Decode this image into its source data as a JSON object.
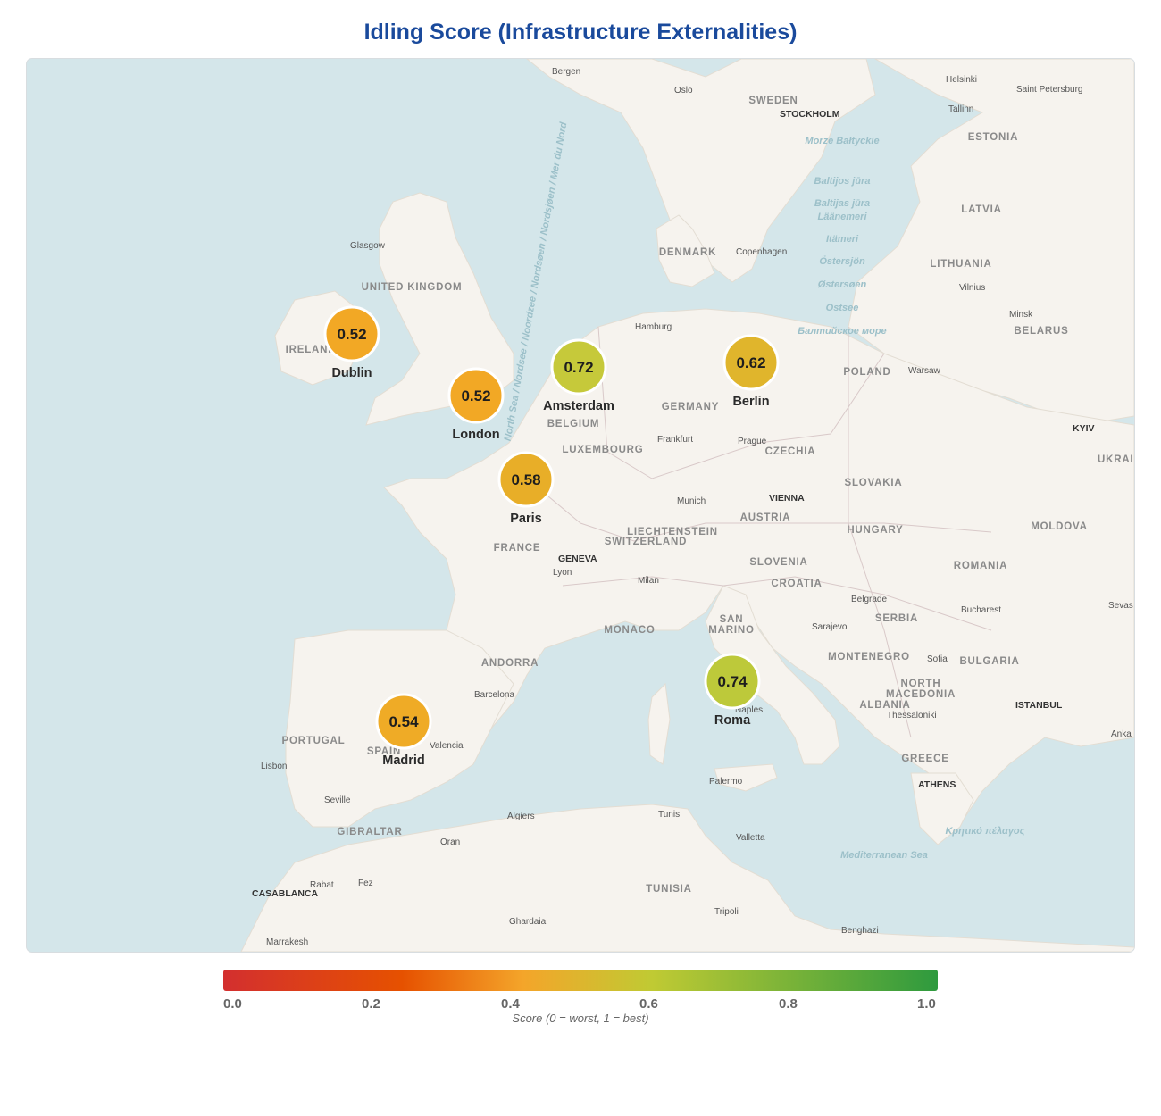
{
  "title": "Idling Score (Infrastructure Externalities)",
  "markers": [
    {
      "city": "Dublin",
      "score": "0.52",
      "color": "#f2a825"
    },
    {
      "city": "London",
      "score": "0.52",
      "color": "#f2a825"
    },
    {
      "city": "Amsterdam",
      "score": "0.72",
      "color": "#c6c93a"
    },
    {
      "city": "Berlin",
      "score": "0.62",
      "color": "#e0b52c"
    },
    {
      "city": "Paris",
      "score": "0.58",
      "color": "#e8ae28"
    },
    {
      "city": "Madrid",
      "score": "0.54",
      "color": "#efab26"
    },
    {
      "city": "Roma",
      "score": "0.74",
      "color": "#bdc93a"
    }
  ],
  "countries": [
    "SWEDEN",
    "ESTONIA",
    "LATVIA",
    "LITHUANIA",
    "DENMARK",
    "UNITED KINGDOM",
    "IRELAND",
    "BELARUS",
    "POLAND",
    "GERMANY",
    "BELGIUM",
    "LUXEMBOURG",
    "CZECHIA",
    "SLOVAKIA",
    "UKRAINE",
    "AUSTRIA",
    "HUNGARY",
    "MOLDOVA",
    "LIECHTENSTEIN",
    "SWITZERLAND",
    "FRANCE",
    "SLOVENIA",
    "CROATIA",
    "ROMANIA",
    "SERBIA",
    "SAN",
    "MARINO",
    "MONACO",
    "ANDORRA",
    "MONTENEGRO",
    "BULGARIA",
    "NORTH",
    "MACEDONIA",
    "ALBANIA",
    "PORTUGAL",
    "SPAIN",
    "GREECE",
    "GIBRALTAR",
    "TUNISIA"
  ],
  "cities": [
    "Bergen",
    "Oslo",
    "Helsinki",
    "Saint Petersburg",
    "STOCKHOLM",
    "Tallinn",
    "Glasgow",
    "Copenhagen",
    "Vilnius",
    "Minsk",
    "Hamburg",
    "Warsaw",
    "KYIV",
    "Frankfurt",
    "Prague",
    "Munich",
    "VIENNA",
    "GENEVA",
    "Lyon",
    "Milan",
    "Belgrade",
    "Bucharest",
    "Sarajevo",
    "Sofia",
    "Barcelona",
    "Naples",
    "ISTANBUL",
    "Thessaloniki",
    "Valencia",
    "Lisbon",
    "ATHENS",
    "Seville",
    "Palermo",
    "Algiers",
    "Tunis",
    "Oran",
    "Valletta",
    "Rabat",
    "Fez",
    "CASABLANCA",
    "Tripoli",
    "Ghardaia",
    "Marrakesh",
    "Benghazi",
    "Sevas",
    "Anka"
  ],
  "seas": [
    "North Sea / Nordsee / Noordzee / Nordsøen / Nordsjøen / Mer du Nord",
    "Morze Bałtyckie",
    "Baltijos jūra",
    "Baltijas jūra",
    "Läänemeri",
    "Itämeri",
    "Östersjön",
    "Østersøen",
    "Ostsee",
    "Балтийское море",
    "Κρητικό πέλαγος",
    "Mediterranean Sea"
  ],
  "legend": {
    "ticks": [
      "0.0",
      "0.2",
      "0.4",
      "0.6",
      "0.8",
      "1.0"
    ],
    "caption": "Score (0 = worst, 1 = best)",
    "colors": [
      "#d32f2f",
      "#e65100",
      "#f4a52a",
      "#c0ca33",
      "#2e9a3e"
    ]
  }
}
